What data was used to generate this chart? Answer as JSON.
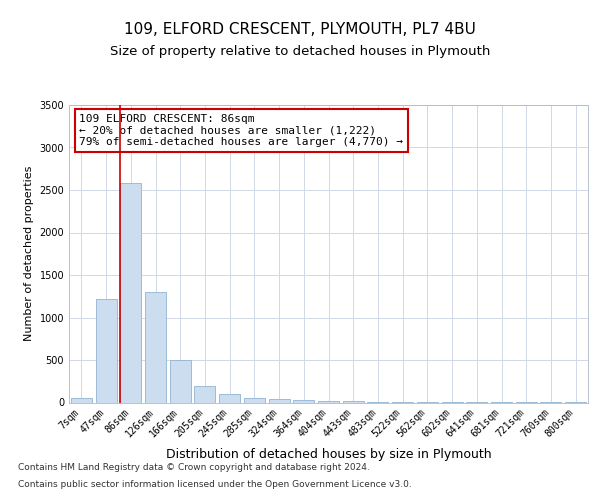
{
  "title": "109, ELFORD CRESCENT, PLYMOUTH, PL7 4BU",
  "subtitle": "Size of property relative to detached houses in Plymouth",
  "xlabel": "Distribution of detached houses by size in Plymouth",
  "ylabel": "Number of detached properties",
  "categories": [
    "7sqm",
    "47sqm",
    "86sqm",
    "126sqm",
    "166sqm",
    "205sqm",
    "245sqm",
    "285sqm",
    "324sqm",
    "364sqm",
    "404sqm",
    "443sqm",
    "483sqm",
    "522sqm",
    "562sqm",
    "602sqm",
    "641sqm",
    "681sqm",
    "721sqm",
    "760sqm",
    "800sqm"
  ],
  "values": [
    50,
    1222,
    2580,
    1300,
    500,
    200,
    100,
    50,
    40,
    30,
    20,
    15,
    10,
    5,
    3,
    2,
    2,
    1,
    1,
    1,
    1
  ],
  "bar_color": "#ccddf0",
  "bar_edge_color": "#8fb4d4",
  "property_line_x": 2,
  "property_line_color": "#cc0000",
  "annotation_text": "109 ELFORD CRESCENT: 86sqm\n← 20% of detached houses are smaller (1,222)\n79% of semi-detached houses are larger (4,770) →",
  "annotation_box_color": "#cc0000",
  "ylim": [
    0,
    3500
  ],
  "yticks": [
    0,
    500,
    1000,
    1500,
    2000,
    2500,
    3000,
    3500
  ],
  "footnote1": "Contains HM Land Registry data © Crown copyright and database right 2024.",
  "footnote2": "Contains public sector information licensed under the Open Government Licence v3.0.",
  "bg_color": "#ffffff",
  "grid_color": "#d0d8e8",
  "title_fontsize": 11,
  "subtitle_fontsize": 9.5,
  "xlabel_fontsize": 9,
  "ylabel_fontsize": 8,
  "tick_fontsize": 7,
  "annotation_fontsize": 8,
  "footnote_fontsize": 6.5
}
